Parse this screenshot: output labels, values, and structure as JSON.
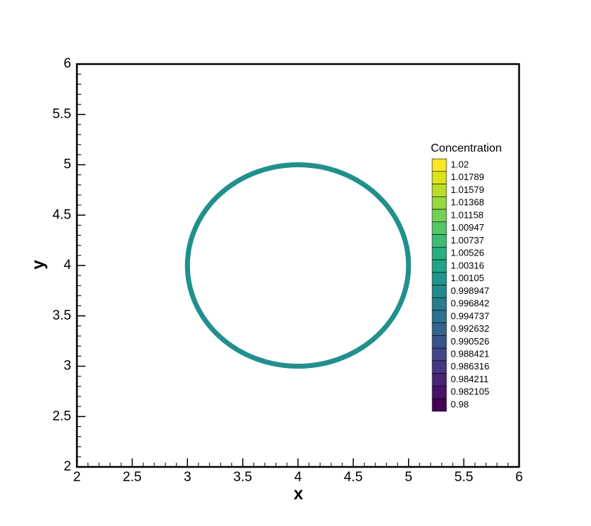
{
  "chart_data": {
    "type": "contour",
    "x_label": "x",
    "y_label": "y",
    "xlim": [
      2,
      6
    ],
    "ylim": [
      2,
      6
    ],
    "xticks": [
      2,
      2.5,
      3,
      3.5,
      4,
      4.5,
      5,
      5.5,
      6
    ],
    "yticks": [
      2,
      2.5,
      3,
      3.5,
      4,
      4.5,
      5,
      5.5,
      6
    ],
    "xminorticks": [
      2.1,
      2.2,
      2.3,
      2.4,
      2.6,
      2.7,
      2.8,
      2.9,
      3.1,
      3.2,
      3.3,
      3.4,
      3.6,
      3.7,
      3.8,
      3.9,
      4.1,
      4.2,
      4.3,
      4.4,
      4.6,
      4.7,
      4.8,
      4.9,
      5.1,
      5.2,
      5.3,
      5.4,
      5.6,
      5.7,
      5.8,
      5.9
    ],
    "yminorticks": [
      2.1,
      2.2,
      2.3,
      2.4,
      2.6,
      2.7,
      2.8,
      2.9,
      3.1,
      3.2,
      3.3,
      3.4,
      3.6,
      3.7,
      3.8,
      3.9,
      4.1,
      4.2,
      4.3,
      4.4,
      4.6,
      4.7,
      4.8,
      4.9,
      5.1,
      5.2,
      5.3,
      5.4,
      5.6,
      5.7,
      5.8,
      5.9
    ],
    "circle": {
      "cx": 4,
      "cy": 4,
      "r": 1,
      "color": "#21908c"
    },
    "legend_title": "Concentration",
    "legend_levels": [
      1.02,
      1.01789,
      1.01579,
      1.01368,
      1.01158,
      1.00947,
      1.00737,
      1.00526,
      1.00316,
      1.00105,
      0.998947,
      0.996842,
      0.994737,
      0.992632,
      0.990526,
      0.988421,
      0.986316,
      0.984211,
      0.982105,
      0.98
    ],
    "legend_colors": [
      "#fde725",
      "#dde318",
      "#bade28",
      "#95d840",
      "#75d054",
      "#56c667",
      "#3dbc74",
      "#29af7f",
      "#20a386",
      "#1f968b",
      "#238a8d",
      "#287d8e",
      "#2d718e",
      "#33638d",
      "#39558c",
      "#404688",
      "#453781",
      "#482576",
      "#481467",
      "#440154"
    ]
  }
}
